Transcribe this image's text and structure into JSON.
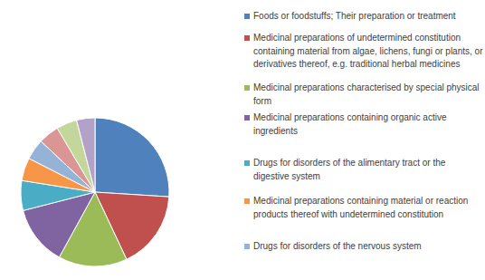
{
  "chart_data": {
    "type": "pie",
    "categories": [
      "Foods or foodstuffs; Their preparation or treatment",
      "Medicinal preparations of undetermined constitution containing material from algae, lichens, fungi or plants, or derivatives thereof, e.g. traditional herbal medicines",
      "Medicinal preparations characterised by special physical form",
      "Medicinal preparations containing organic active ingredients",
      "Drugs for disorders of the alimentary tract or the digestive system",
      "Medicinal preparations containing material or reaction products thereof with undetermined constitution",
      "Drugs for disorders of the nervous system",
      null,
      null,
      null
    ],
    "values": [
      26,
      17,
      15,
      13,
      6.5,
      5,
      4.5,
      4.5,
      4.5,
      4
    ],
    "colors": [
      "#4f81bd",
      "#c0504d",
      "#9bbb59",
      "#8064a2",
      "#4bacc6",
      "#f79646",
      "#95b3d7",
      "#d99694",
      "#c3d69b",
      "#b3a2c7"
    ],
    "legend": "right"
  }
}
